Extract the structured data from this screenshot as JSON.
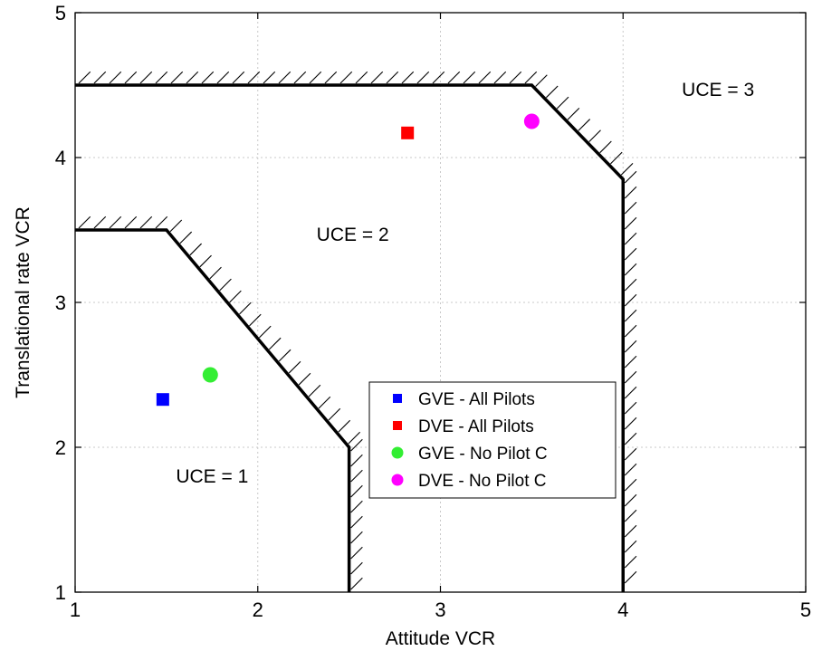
{
  "chart_data": {
    "type": "scatter",
    "xlabel": "Attitude VCR",
    "ylabel": "Translational rate VCR",
    "xlim": [
      1,
      5
    ],
    "ylim": [
      1,
      5
    ],
    "xticks": [
      "1",
      "2",
      "3",
      "4",
      "5"
    ],
    "yticks": [
      "1",
      "2",
      "3",
      "4",
      "5"
    ],
    "grid": true,
    "legend_position": "lower-right",
    "series": [
      {
        "name": "GVE - All Pilots",
        "marker": "square",
        "color": "#0000ff",
        "x": [
          1.48
        ],
        "y": [
          2.33
        ]
      },
      {
        "name": "DVE - All Pilots",
        "marker": "square",
        "color": "#ff0000",
        "x": [
          2.82
        ],
        "y": [
          4.17
        ]
      },
      {
        "name": "GVE - No Pilot C",
        "marker": "circle",
        "color": "#33ee33",
        "x": [
          1.74
        ],
        "y": [
          2.5
        ]
      },
      {
        "name": "DVE - No Pilot C",
        "marker": "circle",
        "color": "#ff00ff",
        "x": [
          3.5
        ],
        "y": [
          4.25
        ]
      }
    ],
    "boundaries": [
      {
        "points": [
          [
            1,
            3.5
          ],
          [
            1.5,
            3.5
          ],
          [
            2.5,
            2.0
          ],
          [
            2.5,
            1.0
          ]
        ]
      },
      {
        "points": [
          [
            1,
            4.5
          ],
          [
            3.5,
            4.5
          ],
          [
            4.0,
            3.85
          ],
          [
            4.0,
            1.0
          ]
        ]
      }
    ],
    "annotations": [
      {
        "text": "UCE = 1",
        "x": 1.75,
        "y": 1.8
      },
      {
        "text": "UCE = 2",
        "x": 2.52,
        "y": 3.47
      },
      {
        "text": "UCE = 3",
        "x": 4.52,
        "y": 4.47
      }
    ]
  }
}
